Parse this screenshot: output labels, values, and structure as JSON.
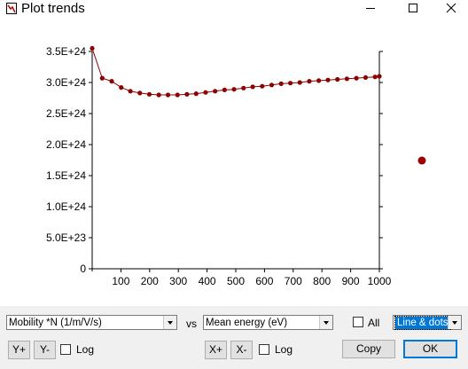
{
  "window": {
    "title": "Plot trends",
    "controls": {
      "minimize": "minimize",
      "maximize": "maximize",
      "close": "close"
    }
  },
  "chart_data": {
    "type": "line",
    "mode": "Line & dots",
    "xlim": [
      0,
      1000
    ],
    "ylim": [
      0,
      3.5e+24
    ],
    "x_ticks": [
      100,
      200,
      300,
      400,
      500,
      600,
      700,
      800,
      900,
      1000
    ],
    "x_tick_labels": [
      "100",
      "200",
      "300",
      "400",
      "500",
      "600",
      "700",
      "800",
      "900",
      "1000"
    ],
    "y_ticks": [
      0,
      5e+23,
      1e+24,
      1.5e+24,
      2e+24,
      2.5e+24,
      3e+24,
      3.5e+24
    ],
    "y_tick_labels": [
      "0",
      "5.0E+23",
      "1.0E+24",
      "1.5E+24",
      "2.0E+24",
      "2.5E+24",
      "3.0E+24",
      "3.5E+24"
    ],
    "series": [
      {
        "color": "#8b0000",
        "x": [
          0,
          35,
          68,
          101,
          133,
          166,
          199,
          232,
          264,
          297,
          330,
          362,
          395,
          428,
          461,
          494,
          527,
          559,
          592,
          625,
          658,
          690,
          723,
          756,
          789,
          821,
          854,
          887,
          920,
          952,
          985,
          1000
        ],
        "y": [
          3.55e+24,
          3.07e+24,
          3.02e+24,
          2.92e+24,
          2.86e+24,
          2.83e+24,
          2.81e+24,
          2.8e+24,
          2.8e+24,
          2.8e+24,
          2.81e+24,
          2.82e+24,
          2.84e+24,
          2.86e+24,
          2.88e+24,
          2.89e+24,
          2.91e+24,
          2.93e+24,
          2.94e+24,
          2.96e+24,
          2.98e+24,
          2.99e+24,
          3e+24,
          3.02e+24,
          3.03e+24,
          3.04e+24,
          3.05e+24,
          3.06e+24,
          3.07e+24,
          3.08e+24,
          3.09e+24,
          3.1e+24
        ]
      }
    ],
    "legend_marker_color": "#a00000"
  },
  "controls": {
    "y_quantity": "Mobility *N (1/m/V/s)",
    "vs_label": "vs",
    "x_quantity": "Mean energy (eV)",
    "all_label": "All",
    "plot_style": "Line & dots",
    "y_plus": "Y+",
    "y_minus": "Y-",
    "y_log_label": "Log",
    "x_plus": "X+",
    "x_minus": "X-",
    "x_log_label": "Log",
    "copy": "Copy",
    "ok": "OK"
  }
}
